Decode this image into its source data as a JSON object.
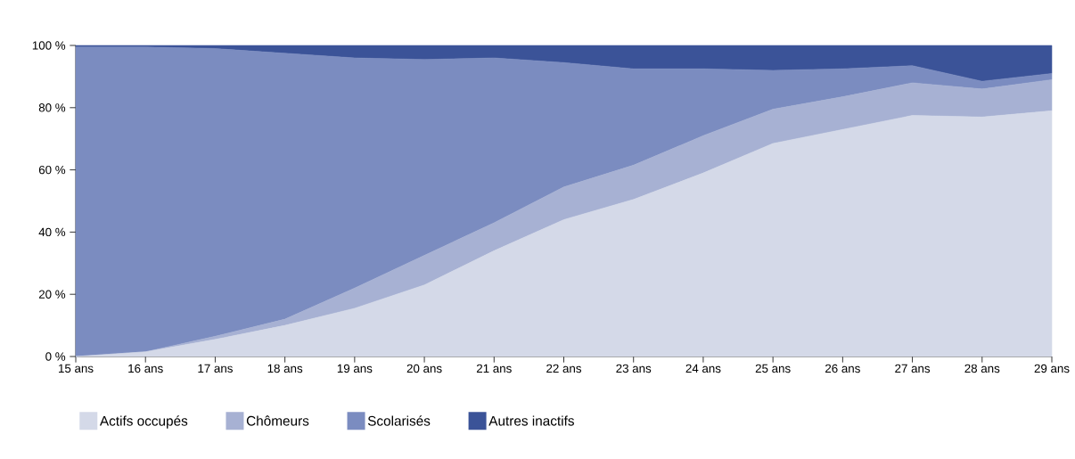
{
  "chart_data": {
    "type": "area",
    "stacked": true,
    "legend": "bottom",
    "categories": [
      "15 ans",
      "16 ans",
      "17 ans",
      "18 ans",
      "19 ans",
      "20 ans",
      "21 ans",
      "22 ans",
      "23 ans",
      "24 ans",
      "25 ans",
      "26 ans",
      "27 ans",
      "28 ans",
      "29 ans"
    ],
    "ylim": [
      0,
      100
    ],
    "yticks": [
      {
        "value": 0,
        "label": "0 %"
      },
      {
        "value": 20,
        "label": "20 %"
      },
      {
        "value": 40,
        "label": "40 %"
      },
      {
        "value": 60,
        "label": "60 %"
      },
      {
        "value": 80,
        "label": "80 %"
      },
      {
        "value": 100,
        "label": "100 %"
      }
    ],
    "series": [
      {
        "name": "Actifs occupés",
        "color": "#d4d9e8",
        "values": [
          0,
          1.5,
          5.5,
          10,
          15.5,
          23,
          34,
          44,
          50.5,
          59,
          68.5,
          73,
          77.5,
          77,
          79
        ]
      },
      {
        "name": "Chômeurs",
        "color": "#a7b1d3",
        "values": [
          0,
          0,
          1,
          2,
          6.5,
          9.5,
          9,
          10.5,
          11,
          12,
          11,
          10.5,
          10.5,
          9,
          10
        ]
      },
      {
        "name": "Scolarisés",
        "color": "#7b8cc0",
        "values": [
          99.5,
          98,
          92.5,
          85.5,
          74,
          63,
          53,
          40,
          31,
          21.5,
          12.5,
          9,
          5.5,
          2.5,
          2
        ]
      },
      {
        "name": "Autres inactifs",
        "color": "#3b5398",
        "values": [
          0.5,
          0.5,
          1,
          2.5,
          4,
          4.5,
          4,
          5.5,
          7.5,
          7.5,
          8,
          7.5,
          6.5,
          11.5,
          9
        ]
      }
    ]
  }
}
